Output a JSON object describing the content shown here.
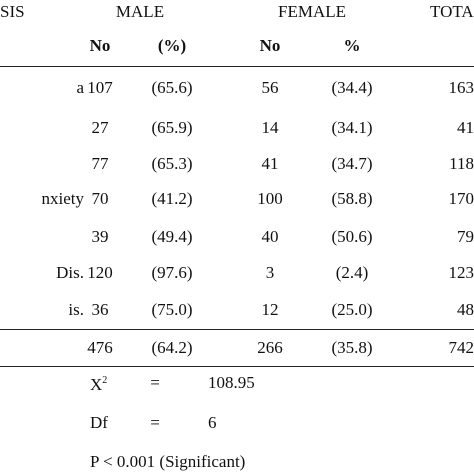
{
  "header": {
    "diagnosis": "SIS",
    "male": "MALE",
    "female": "FEMALE",
    "total": "TOTA",
    "sub": [
      "No",
      "(%)",
      "No",
      "%"
    ]
  },
  "table": {
    "rows": [
      {
        "label": "a",
        "cells": [
          "107",
          "(65.6)",
          "56",
          "(34.4)",
          "163"
        ]
      },
      {
        "cells": [
          "27",
          "(65.9)",
          "14",
          "(34.1)",
          "41"
        ]
      },
      {
        "cells": [
          "77",
          "(65.3)",
          "41",
          "(34.7)",
          "118"
        ]
      },
      {
        "label": "nxiety",
        "cells": [
          "70",
          "(41.2)",
          "100",
          "(58.8)",
          "170"
        ]
      },
      {
        "cells": [
          "39",
          "(49.4)",
          "40",
          "(50.6)",
          "79"
        ]
      },
      {
        "label": "Dis.",
        "cells": [
          "120",
          "(97.6)",
          "3",
          "(2.4)",
          "123"
        ]
      },
      {
        "label": "is.",
        "cells": [
          "36",
          "(75.0)",
          "12",
          "(25.0)",
          "48"
        ]
      },
      {
        "cells": [
          "476",
          "(64.2)",
          "266",
          "(35.8)",
          "742"
        ]
      }
    ]
  },
  "stats": [
    {
      "label": "X",
      "sup": "2",
      "eq": "=",
      "value": "108.95"
    },
    {
      "label": "Df",
      "eq": "=",
      "value": "6"
    },
    {
      "text": "P < 0.001 (Significant)"
    }
  ]
}
